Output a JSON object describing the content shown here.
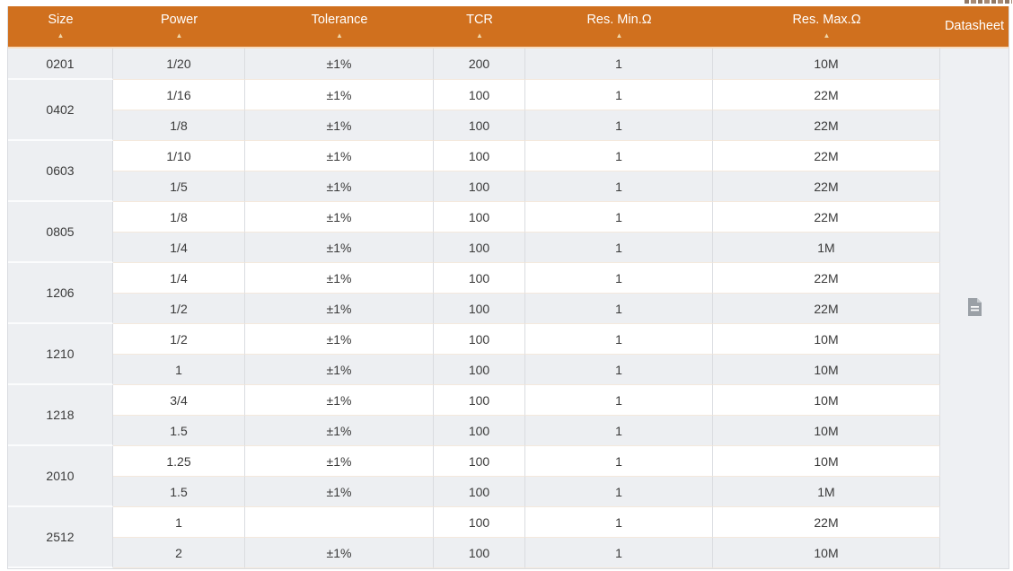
{
  "table": {
    "columns": [
      {
        "key": "size",
        "label": "Size",
        "sortable": true
      },
      {
        "key": "power",
        "label": "Power",
        "sortable": true
      },
      {
        "key": "tolerance",
        "label": "Tolerance",
        "sortable": true
      },
      {
        "key": "tcr",
        "label": "TCR",
        "sortable": true
      },
      {
        "key": "res_min",
        "label": "Res. Min.Ω",
        "sortable": true
      },
      {
        "key": "res_max",
        "label": "Res. Max.Ω",
        "sortable": true
      },
      {
        "key": "datasheet",
        "label": "Datasheet",
        "sortable": false
      }
    ],
    "sort_icon": {
      "name": "triangle-up-icon",
      "glyph": "▲"
    },
    "datasheet_icon": {
      "name": "document-icon"
    },
    "groups": [
      {
        "size": "0201",
        "rows": [
          {
            "power": "1/20",
            "tolerance": "±1%",
            "tcr": "200",
            "res_min": "1",
            "res_max": "10M"
          }
        ]
      },
      {
        "size": "0402",
        "rows": [
          {
            "power": "1/16",
            "tolerance": "±1%",
            "tcr": "100",
            "res_min": "1",
            "res_max": "22M"
          },
          {
            "power": "1/8",
            "tolerance": "±1%",
            "tcr": "100",
            "res_min": "1",
            "res_max": "22M"
          }
        ]
      },
      {
        "size": "0603",
        "rows": [
          {
            "power": "1/10",
            "tolerance": "±1%",
            "tcr": "100",
            "res_min": "1",
            "res_max": "22M"
          },
          {
            "power": "1/5",
            "tolerance": "±1%",
            "tcr": "100",
            "res_min": "1",
            "res_max": "22M"
          }
        ]
      },
      {
        "size": "0805",
        "rows": [
          {
            "power": "1/8",
            "tolerance": "±1%",
            "tcr": "100",
            "res_min": "1",
            "res_max": "22M"
          },
          {
            "power": "1/4",
            "tolerance": "±1%",
            "tcr": "100",
            "res_min": "1",
            "res_max": "1M"
          }
        ]
      },
      {
        "size": "1206",
        "rows": [
          {
            "power": "1/4",
            "tolerance": "±1%",
            "tcr": "100",
            "res_min": "1",
            "res_max": "22M"
          },
          {
            "power": "1/2",
            "tolerance": "±1%",
            "tcr": "100",
            "res_min": "1",
            "res_max": "22M"
          }
        ]
      },
      {
        "size": "1210",
        "rows": [
          {
            "power": "1/2",
            "tolerance": "±1%",
            "tcr": "100",
            "res_min": "1",
            "res_max": "10M"
          },
          {
            "power": "1",
            "tolerance": "±1%",
            "tcr": "100",
            "res_min": "1",
            "res_max": "10M"
          }
        ]
      },
      {
        "size": "1218",
        "rows": [
          {
            "power": "3/4",
            "tolerance": "±1%",
            "tcr": "100",
            "res_min": "1",
            "res_max": "10M"
          },
          {
            "power": "1.5",
            "tolerance": "±1%",
            "tcr": "100",
            "res_min": "1",
            "res_max": "10M"
          }
        ]
      },
      {
        "size": "2010",
        "rows": [
          {
            "power": "1.25",
            "tolerance": "±1%",
            "tcr": "100",
            "res_min": "1",
            "res_max": "10M"
          },
          {
            "power": "1.5",
            "tolerance": "±1%",
            "tcr": "100",
            "res_min": "1",
            "res_max": "1M"
          }
        ]
      },
      {
        "size": "2512",
        "rows": [
          {
            "power": "1",
            "tolerance": "",
            "tcr": "100",
            "res_min": "1",
            "res_max": "22M"
          },
          {
            "power": "2",
            "tolerance": "±1%",
            "tcr": "100",
            "res_min": "1",
            "res_max": "10M"
          }
        ]
      }
    ],
    "colors": {
      "header_bg": "#d0701e",
      "header_text": "#ffffff",
      "sort_arrow": "#f0d6aa",
      "row_stripe": "#edeff2",
      "row_white": "#ffffff",
      "vertical_border": "#dadce0",
      "row_border": "#f4e9dd",
      "header_underline": "#f8ddc0",
      "icon_gray": "#9aa0a6",
      "body_text": "#3a3a3a"
    }
  }
}
